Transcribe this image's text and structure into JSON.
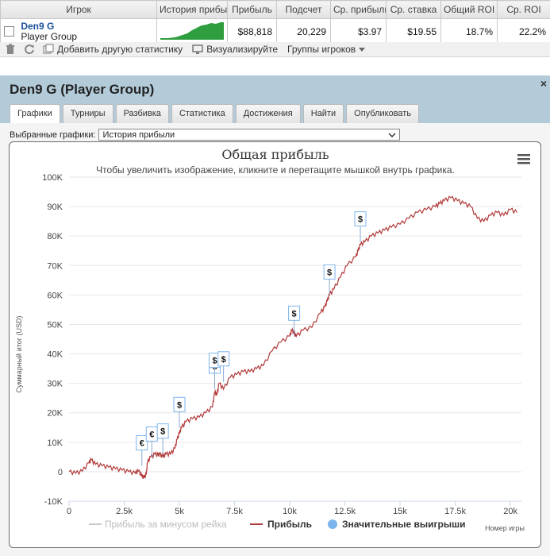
{
  "table": {
    "headers": [
      "Игрок",
      "История прибы",
      "Прибыль",
      "Подсчет",
      "Ср. прибыль",
      "Ср. ставка",
      "Общий ROI",
      "Ср. ROI"
    ],
    "row": {
      "player": "Den9 G",
      "group": "Player Group",
      "profit": "$88,818",
      "count": "20,229",
      "avg_profit": "$3.97",
      "avg_stake": "$19.55",
      "total_roi": "18.7%",
      "avg_roi": "22.2%"
    }
  },
  "toolbar": {
    "add_stats": "Добавить другую статистику",
    "visualize": "Визуализируйте",
    "groups": "Группы игроков"
  },
  "panel": {
    "title": "Den9 G (Player Group)",
    "close": "×",
    "tabs": [
      "Графики",
      "Турниры",
      "Разбивка",
      "Статистика",
      "Достижения",
      "Найти",
      "Опубликовать"
    ],
    "select_label": "Выбранные графики:",
    "select_value": "История прибыли"
  },
  "colors": {
    "profit_line": "#b23a3a",
    "rake_line": "#c8c8c8",
    "win_marker": "#7cb5ec",
    "panel_header": "#b3cbd9",
    "sparkline": "#2e9e3e"
  },
  "chart_data": {
    "type": "line",
    "title": "Общая прибыль",
    "subtitle": "Чтобы увеличить изображение, кликните и перетащите мышкой внутрь графика.",
    "xlabel": "Номер игры",
    "ylabel": "Суммарный итог (USD)",
    "xlim": [
      0,
      20500
    ],
    "ylim": [
      -10000,
      100000
    ],
    "x_ticks": [
      "0",
      "2.5k",
      "5k",
      "7.5k",
      "10k",
      "12.5k",
      "15k",
      "17.5k",
      "20k"
    ],
    "y_ticks": [
      "-10K",
      "0",
      "10K",
      "20K",
      "30K",
      "40K",
      "50K",
      "60K",
      "70K",
      "80K",
      "90K",
      "100K"
    ],
    "legend": [
      "Прибыль за минусом рейка",
      "Прибыль",
      "Значительные выигрыши"
    ],
    "legend_position": "bottom",
    "series": [
      {
        "name": "Прибыль",
        "x": [
          0,
          300,
          600,
          900,
          1000,
          1200,
          1500,
          1800,
          2100,
          2400,
          2700,
          3000,
          3150,
          3300,
          3400,
          3500,
          3550,
          3700,
          3900,
          4050,
          4100,
          4250,
          4400,
          4600,
          4800,
          4900,
          5000,
          5100,
          5300,
          5600,
          5900,
          6200,
          6500,
          6600,
          6700,
          6800,
          7000,
          7300,
          7600,
          7900,
          8200,
          8500,
          8800,
          9200,
          9600,
          10000,
          10100,
          10200,
          10300,
          10600,
          11000,
          11400,
          11600,
          11700,
          11800,
          12000,
          12300,
          12600,
          13000,
          13100,
          13200,
          13400,
          13700,
          14000,
          14300,
          14600,
          15000,
          15400,
          15800,
          16200,
          16600,
          16800,
          17000,
          17300,
          17600,
          17900,
          18200,
          18500,
          18800,
          19100,
          19400,
          19700,
          20000,
          20300
        ],
        "y": [
          0,
          -500,
          200,
          3000,
          4000,
          2500,
          2000,
          1500,
          1000,
          500,
          0,
          -500,
          200,
          -1500,
          -2000,
          -1000,
          3000,
          5000,
          6000,
          5500,
          6000,
          5000,
          6000,
          6000,
          8000,
          11000,
          13000,
          15000,
          17000,
          18000,
          18500,
          20000,
          22000,
          27000,
          26000,
          30000,
          28000,
          32000,
          33000,
          34000,
          34000,
          35000,
          36000,
          41000,
          44000,
          46000,
          48000,
          47000,
          46000,
          48000,
          49000,
          54000,
          56000,
          58000,
          60000,
          62000,
          66000,
          70000,
          73000,
          75000,
          77000,
          78000,
          80000,
          81000,
          82000,
          83000,
          84000,
          86000,
          88000,
          89000,
          90000,
          91000,
          92000,
          93000,
          92000,
          91000,
          90000,
          86000,
          85000,
          87000,
          88000,
          87000,
          89000,
          88000
        ]
      },
      {
        "name": "Значительные выигрыши",
        "x": [
          3300,
          3750,
          4250,
          5000,
          6600,
          6600,
          7000,
          10200,
          11800,
          13200
        ],
        "y": [
          2000,
          5000,
          6000,
          15000,
          28000,
          30000,
          30500,
          46000,
          60000,
          78000
        ],
        "labels": [
          "€",
          "€",
          "$",
          "$",
          "$",
          "$",
          "$",
          "$",
          "$",
          "$"
        ]
      }
    ]
  }
}
